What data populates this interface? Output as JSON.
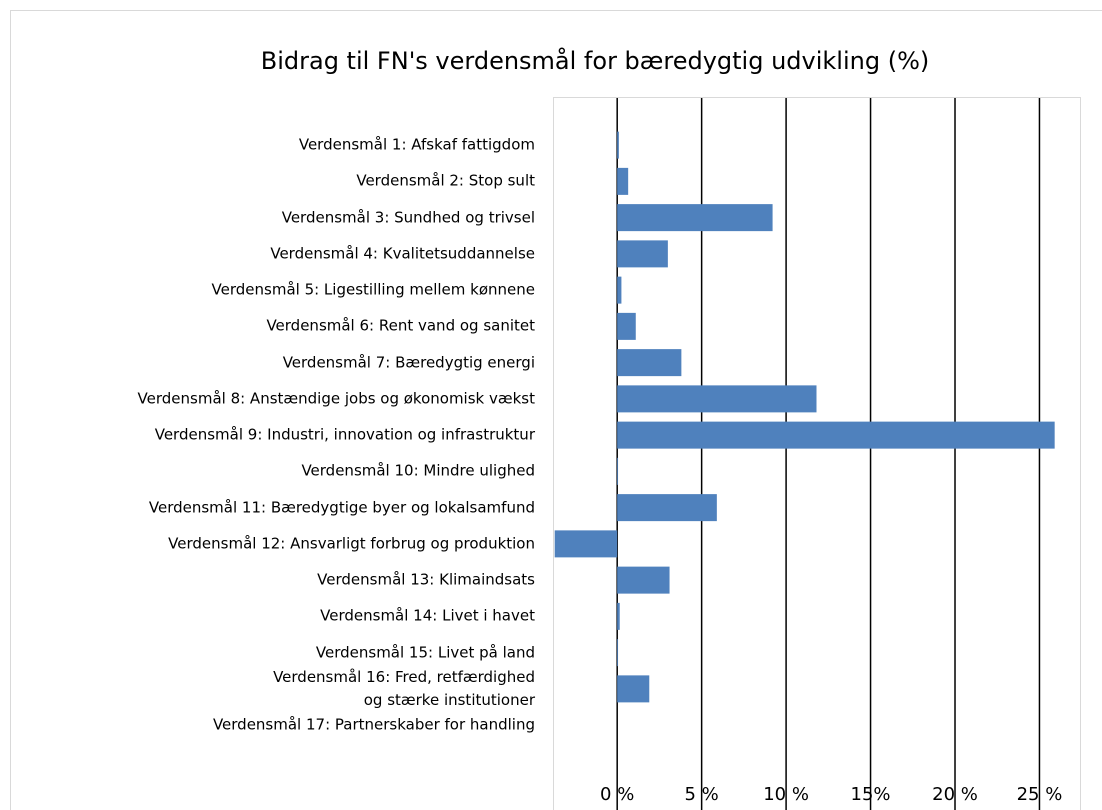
{
  "chart_data": {
    "type": "bar",
    "orientation": "horizontal",
    "title": "Bidrag til FN's verdensmål for bæredygtig udvikling (%)",
    "categories": [
      "Verdensmål 1: Afskaf fattigdom",
      "Verdensmål 2: Stop sult",
      "Verdensmål 3: Sundhed og trivsel",
      "Verdensmål 4: Kvalitetsuddannelse",
      "Verdensmål 5: Ligestilling mellem kønnene",
      "Verdensmål 6: Rent vand og sanitet",
      "Verdensmål 7: Bæredygtig energi",
      "Verdensmål 8: Anstændige jobs og økonomisk vækst",
      "Verdensmål 9: Industri, innovation og infrastruktur",
      "Verdensmål 10: Mindre ulighed",
      "Verdensmål 11: Bæredygtige byer og lokalsamfund",
      "Verdensmål 12: Ansvarligt forbrug og produktion",
      "Verdensmål 13: Klimaindsats",
      "Verdensmål 14: Livet i havet",
      "Verdensmål 15: Livet på land",
      "Verdensmål 16: Fred, retfærdighed\nog stærke institutioner",
      "Verdensmål 17: Partnerskaber for handling"
    ],
    "values": [
      0.1,
      0.65,
      9.2,
      3.0,
      0.25,
      1.1,
      3.8,
      11.8,
      25.9,
      0.05,
      5.9,
      -3.7,
      3.1,
      0.15,
      0.05,
      1.9,
      0
    ],
    "color": "#4f81bd",
    "xlim": [
      -3.8,
      27.4
    ],
    "xticks": [
      {
        "value": 0,
        "label": "0 %"
      },
      {
        "value": 5,
        "label": "5 %"
      },
      {
        "value": 10,
        "label": "10 %"
      },
      {
        "value": 15,
        "label": "15%"
      },
      {
        "value": 20,
        "label": "20 %"
      },
      {
        "value": 25,
        "label": "25 %"
      }
    ],
    "grid": true
  }
}
